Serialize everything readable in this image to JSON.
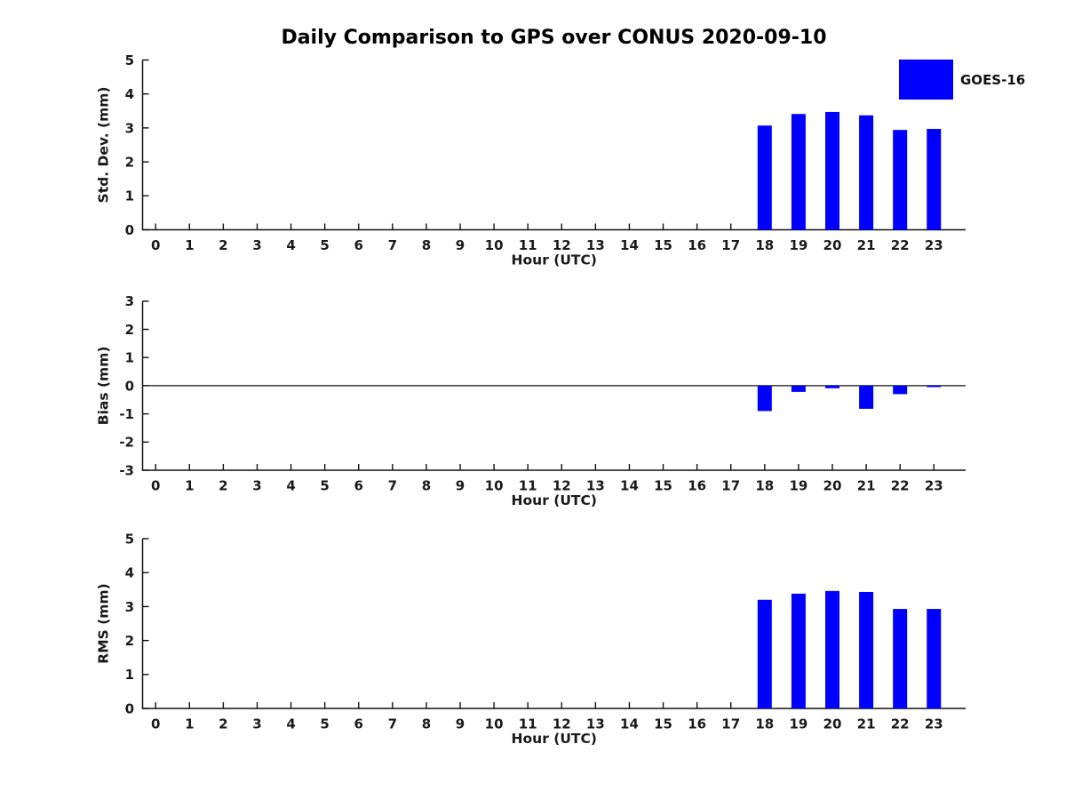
{
  "title": "Daily Comparison to GPS over CONUS 2020-09-10",
  "legend": {
    "label": "GOES-16",
    "color": "#0000ff"
  },
  "colors": {
    "bar": "#0000ff",
    "axis": "#111111",
    "text": "#1a1a1a",
    "background": "#ffffff"
  },
  "chart_data": [
    {
      "type": "bar",
      "title": "Daily Comparison to GPS over CONUS 2020-09-10",
      "xlabel": "Hour (UTC)",
      "ylabel": "Std. Dev. (mm)",
      "ylim": [
        0,
        5
      ],
      "yticks": [
        0,
        1,
        2,
        3,
        4,
        5
      ],
      "grid": false,
      "legend_position": "top-right",
      "categories": [
        0,
        1,
        2,
        3,
        4,
        5,
        6,
        7,
        8,
        9,
        10,
        11,
        12,
        13,
        14,
        15,
        16,
        17,
        18,
        19,
        20,
        21,
        22,
        23
      ],
      "series": [
        {
          "name": "GOES-16",
          "values": [
            null,
            null,
            null,
            null,
            null,
            null,
            null,
            null,
            null,
            null,
            null,
            null,
            null,
            null,
            null,
            null,
            null,
            null,
            3.07,
            3.41,
            3.47,
            3.37,
            2.94,
            2.97
          ]
        }
      ]
    },
    {
      "type": "bar",
      "title": "",
      "xlabel": "Hour (UTC)",
      "ylabel": "Bias (mm)",
      "ylim": [
        -3,
        3
      ],
      "yticks": [
        -3,
        -2,
        -1,
        0,
        1,
        2,
        3
      ],
      "zero_line": true,
      "grid": false,
      "categories": [
        0,
        1,
        2,
        3,
        4,
        5,
        6,
        7,
        8,
        9,
        10,
        11,
        12,
        13,
        14,
        15,
        16,
        17,
        18,
        19,
        20,
        21,
        22,
        23
      ],
      "series": [
        {
          "name": "GOES-16",
          "values": [
            null,
            null,
            null,
            null,
            null,
            null,
            null,
            null,
            null,
            null,
            null,
            null,
            null,
            null,
            null,
            null,
            null,
            null,
            -0.9,
            -0.22,
            -0.09,
            -0.82,
            -0.3,
            -0.05
          ]
        }
      ]
    },
    {
      "type": "bar",
      "title": "",
      "xlabel": "Hour (UTC)",
      "ylabel": "RMS (mm)",
      "ylim": [
        0,
        5
      ],
      "yticks": [
        0,
        1,
        2,
        3,
        4,
        5
      ],
      "grid": false,
      "categories": [
        0,
        1,
        2,
        3,
        4,
        5,
        6,
        7,
        8,
        9,
        10,
        11,
        12,
        13,
        14,
        15,
        16,
        17,
        18,
        19,
        20,
        21,
        22,
        23
      ],
      "series": [
        {
          "name": "GOES-16",
          "values": [
            null,
            null,
            null,
            null,
            null,
            null,
            null,
            null,
            null,
            null,
            null,
            null,
            null,
            null,
            null,
            null,
            null,
            null,
            3.2,
            3.38,
            3.46,
            3.43,
            2.93,
            2.93
          ]
        }
      ]
    }
  ]
}
